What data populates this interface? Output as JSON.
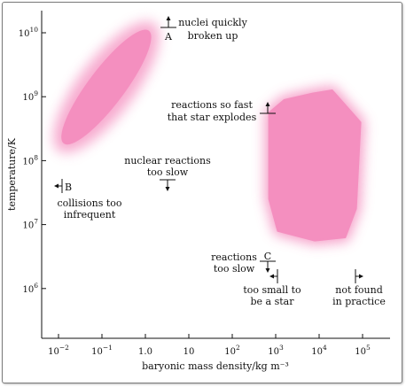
{
  "chart_data": {
    "type": "area",
    "title": "",
    "xlabel": "baryonic mass density/kg m⁻³",
    "ylabel": "temperature/K",
    "x_scale": "log",
    "y_scale": "log",
    "xlim_log10": [
      -2.4,
      5.6
    ],
    "ylim_log10": [
      5.25,
      10.35
    ],
    "x_ticks": [
      {
        "exp": -2,
        "base": "10",
        "sup": "−2"
      },
      {
        "exp": -1,
        "base": "10",
        "sup": "−1"
      },
      {
        "exp": 0,
        "base": "1.0",
        "sup": ""
      },
      {
        "exp": 1,
        "base": "10",
        "sup": ""
      },
      {
        "exp": 2,
        "base": "10",
        "sup": "2"
      },
      {
        "exp": 3,
        "base": "10",
        "sup": "3"
      },
      {
        "exp": 4,
        "base": "10",
        "sup": "4"
      },
      {
        "exp": 5,
        "base": "10",
        "sup": "5"
      }
    ],
    "y_ticks": [
      {
        "exp": 6,
        "base": "10",
        "sup": "6"
      },
      {
        "exp": 7,
        "base": "10",
        "sup": "7"
      },
      {
        "exp": 8,
        "base": "10",
        "sup": "8"
      },
      {
        "exp": 9,
        "base": "10",
        "sup": "9"
      },
      {
        "exp": 10,
        "base": "10",
        "sup": "10"
      }
    ],
    "regions": [
      {
        "name": "",
        "shape": "ellipse",
        "center_log": [
          -0.9,
          9.15
        ],
        "semi_axes_log": [
          1.75,
          0.38
        ],
        "angle_deg": -53,
        "color": "#f48fbf"
      },
      {
        "name": "",
        "shape": "polygon",
        "points_log": [
          [
            2.85,
            8.75
          ],
          [
            3.2,
            8.95
          ],
          [
            3.85,
            9.05
          ],
          [
            4.3,
            9.1
          ],
          [
            4.95,
            8.6
          ],
          [
            4.85,
            7.25
          ],
          [
            4.6,
            6.8
          ],
          [
            3.9,
            6.75
          ],
          [
            3.05,
            6.9
          ],
          [
            2.85,
            7.4
          ]
        ],
        "color": "#f48fbf"
      }
    ],
    "markers": [
      {
        "letter": "A",
        "pos_log": [
          -0.45,
          10.02
        ],
        "orient": "up-arrow"
      },
      {
        "letter": "B",
        "pos_log": [
          -2.1,
          7.6
        ],
        "orient": "left-arrow"
      },
      {
        "letter": "C",
        "pos_log": [
          2.5,
          6.65
        ],
        "orient": "down-arrow"
      }
    ],
    "annotations": [
      {
        "id": "nuclei",
        "lines": [
          "nuclei quickly",
          "broken up"
        ]
      },
      {
        "id": "explodes",
        "lines": [
          "reactions so fast",
          "that star explodes"
        ]
      },
      {
        "id": "tooslow",
        "lines": [
          "nuclear reactions",
          "too slow"
        ]
      },
      {
        "id": "infrequent",
        "lines": [
          "collisions too",
          "infrequent"
        ]
      },
      {
        "id": "reactions_slow",
        "lines": [
          "reactions",
          "too slow"
        ]
      },
      {
        "id": "toosmall",
        "lines": [
          "too small to",
          "be a star"
        ]
      },
      {
        "id": "notfound",
        "lines": [
          "not found",
          "in practice"
        ]
      }
    ],
    "grid": false,
    "legend": "none"
  }
}
